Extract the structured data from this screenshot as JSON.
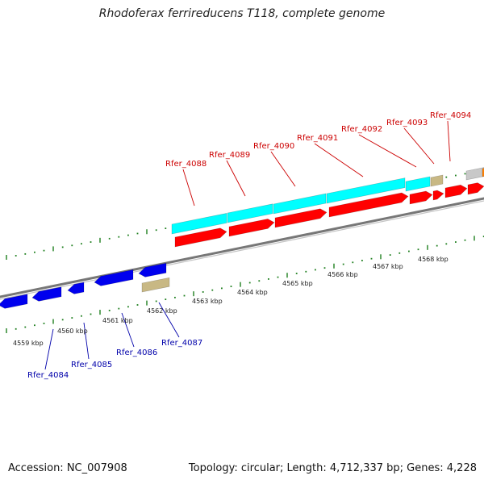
{
  "title": "Rhodoferax ferrireducens T118, complete genome",
  "accession": "Accession: NC_007908",
  "stats": "Topology: circular; Length: 4,712,337 bp; Genes: 4,228",
  "colors": {
    "forward_cds": "#ff0000",
    "forward_highlight": "#00ffff",
    "reverse_cds": "#0000ee",
    "other_feature": "#c8b884",
    "unknown_feature": "#c8c8c8",
    "backbone": "#888888",
    "tick": "#1e7f1e",
    "forward_label": "#cc0000",
    "reverse_label": "#0000aa"
  },
  "scale": {
    "labels": [
      "4559 kbp",
      "4560 kbp",
      "4561 kbp",
      "4562 kbp",
      "4563 kbp",
      "4564 kbp",
      "4565 kbp",
      "4566 kbp",
      "4567 kbp",
      "4568 kbp"
    ]
  },
  "forward_genes": [
    "Rfer_4088",
    "Rfer_4089",
    "Rfer_4090",
    "Rfer_4091",
    "Rfer_4092",
    "Rfer_4093",
    "Rfer_4094"
  ],
  "reverse_genes": [
    "Rfer_4084",
    "Rfer_4085",
    "Rfer_4086",
    "Rfer_4087"
  ]
}
